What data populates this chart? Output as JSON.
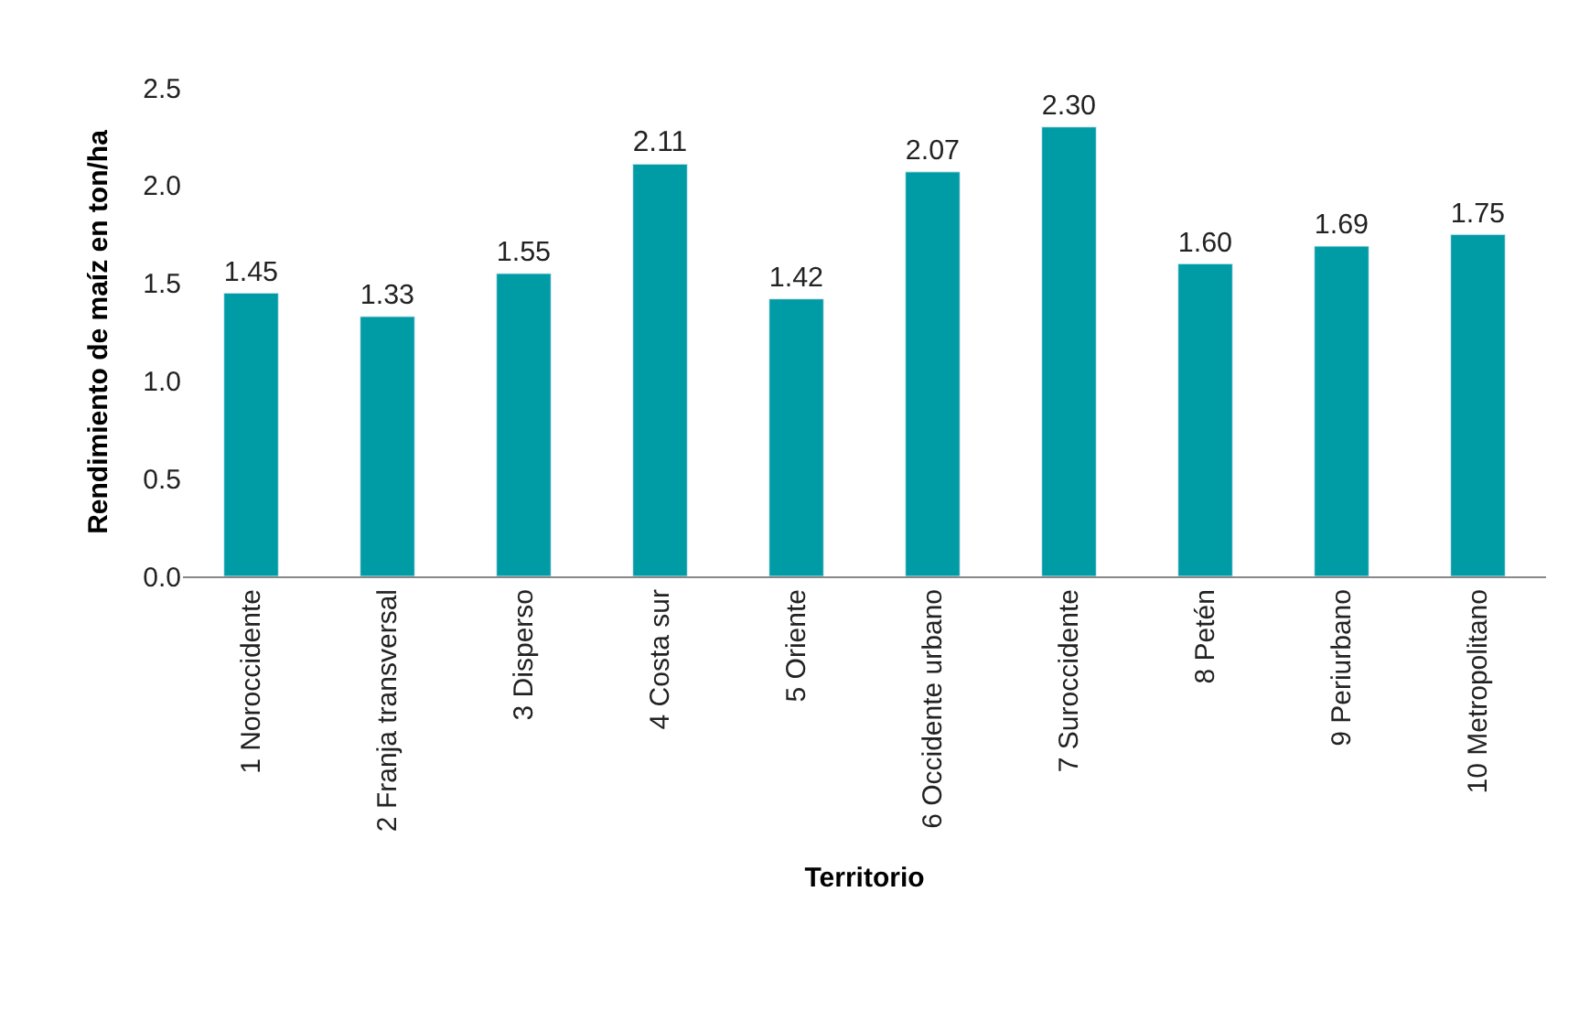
{
  "chart_data": {
    "type": "bar",
    "xlabel": "Territorio",
    "ylabel": "Rendimiento de maíz en ton/ha",
    "categories": [
      "1 Noroccidente",
      "2 Franja transversal",
      "3 Disperso",
      "4 Costa sur",
      "5 Oriente",
      "6 Occidente urbano",
      "7 Suroccidente",
      "8 Petén",
      "9 Periurbano",
      "10 Metropolitano"
    ],
    "values": [
      1.45,
      1.33,
      1.55,
      2.11,
      1.42,
      2.07,
      2.3,
      1.6,
      1.69,
      1.75
    ],
    "value_labels": [
      "1.45",
      "1.33",
      "1.55",
      "2.11",
      "1.42",
      "2.07",
      "2.30",
      "1.60",
      "1.69",
      "1.75"
    ],
    "color": "#009ca6",
    "ylim": [
      0,
      2.5
    ],
    "yticks": [
      {
        "value": 0,
        "label": "0.0"
      },
      {
        "value": 0.5,
        "label": "0.5"
      },
      {
        "value": 1,
        "label": "1.0"
      },
      {
        "value": 1.5,
        "label": "1.5"
      },
      {
        "value": 2,
        "label": "2.0"
      },
      {
        "value": 2.5,
        "label": "2.5"
      }
    ],
    "data_labels": false
  }
}
